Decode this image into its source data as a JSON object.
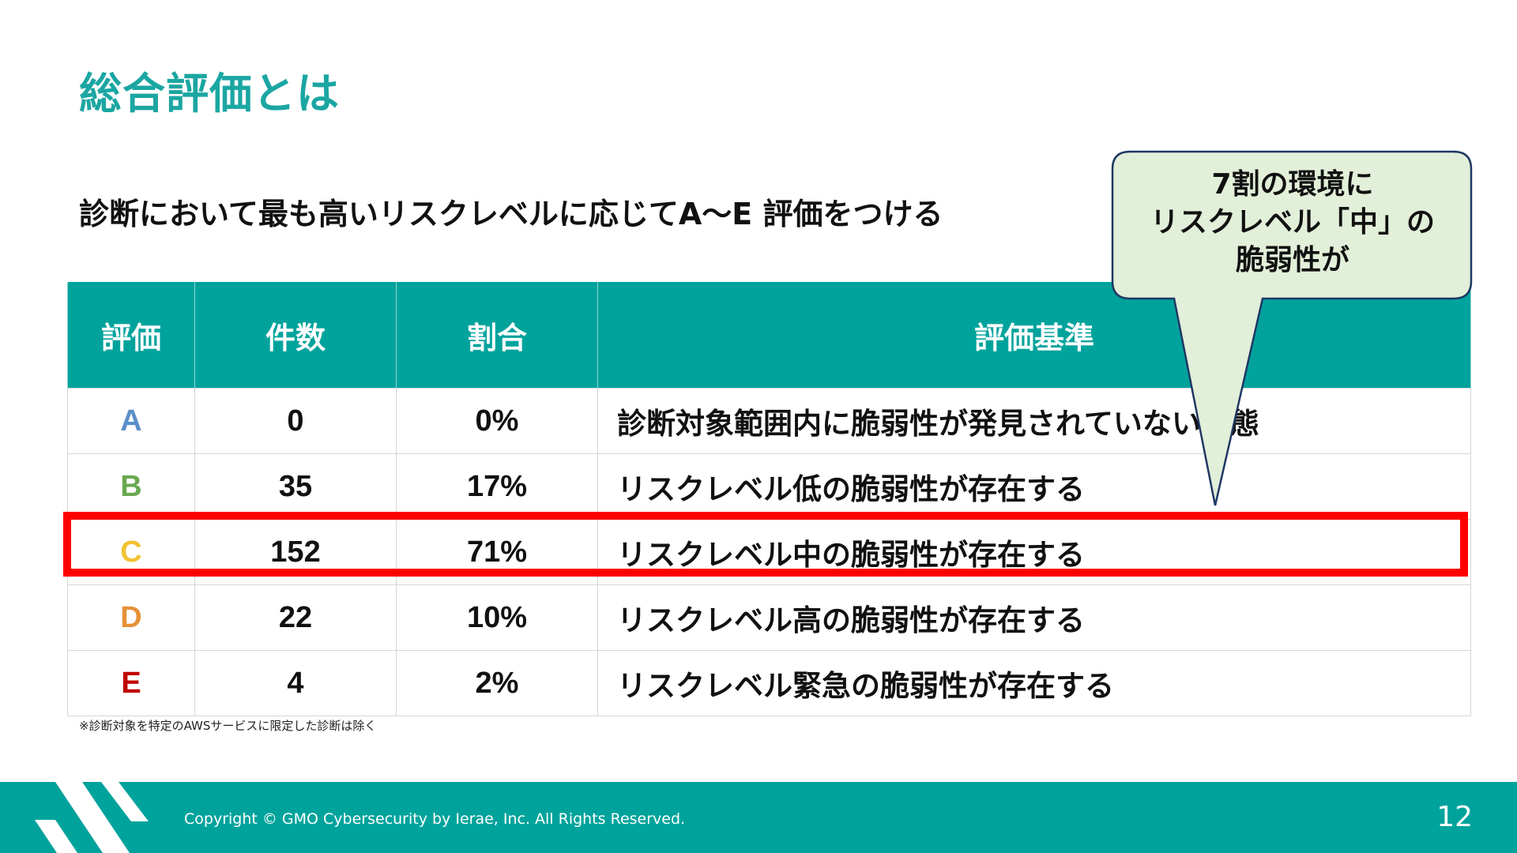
{
  "slide": {
    "title": "総合評価とは",
    "subtitle": "診断において最も高いリスクレベルに応じてA～E 評価をつける",
    "footnote": "※診断対象を特定のAWSサービスに限定した診断は除く",
    "page_number": "12"
  },
  "table": {
    "headers": [
      "評価",
      "件数",
      "割合",
      "評価基準"
    ],
    "rows": [
      {
        "grade": "A",
        "count": "0",
        "ratio": "0%",
        "criteria": "診断対象範囲内に脆弱性が発見されていない状態",
        "grade_color": "#5b8fc9"
      },
      {
        "grade": "B",
        "count": "35",
        "ratio": "17%",
        "criteria": "リスクレベル低の脆弱性が存在する",
        "grade_color": "#6aa84f"
      },
      {
        "grade": "C",
        "count": "152",
        "ratio": "71%",
        "criteria": "リスクレベル中の脆弱性が存在する",
        "grade_color": "#f1c232"
      },
      {
        "grade": "D",
        "count": "22",
        "ratio": "10%",
        "criteria": "リスクレベル高の脆弱性が存在する",
        "grade_color": "#e69138"
      },
      {
        "grade": "E",
        "count": "4",
        "ratio": "2%",
        "criteria": "リスクレベル緊急の脆弱性が存在する",
        "grade_color": "#c00000"
      }
    ],
    "highlighted_row": "C",
    "highlight_color": "#ff0000"
  },
  "callout": {
    "lines": [
      "7割の環境に",
      "リスクレベル「中」の",
      "脆弱性が"
    ],
    "fill": "#e2efd9",
    "stroke": "#1f3864"
  },
  "footer": {
    "copyright": "Copyright © GMO Cybersecurity by Ierae, Inc. All Rights Reserved.",
    "background": "#00a39c"
  },
  "colors": {
    "accent": "#1ba6a2",
    "header_bg": "#00a39c"
  }
}
